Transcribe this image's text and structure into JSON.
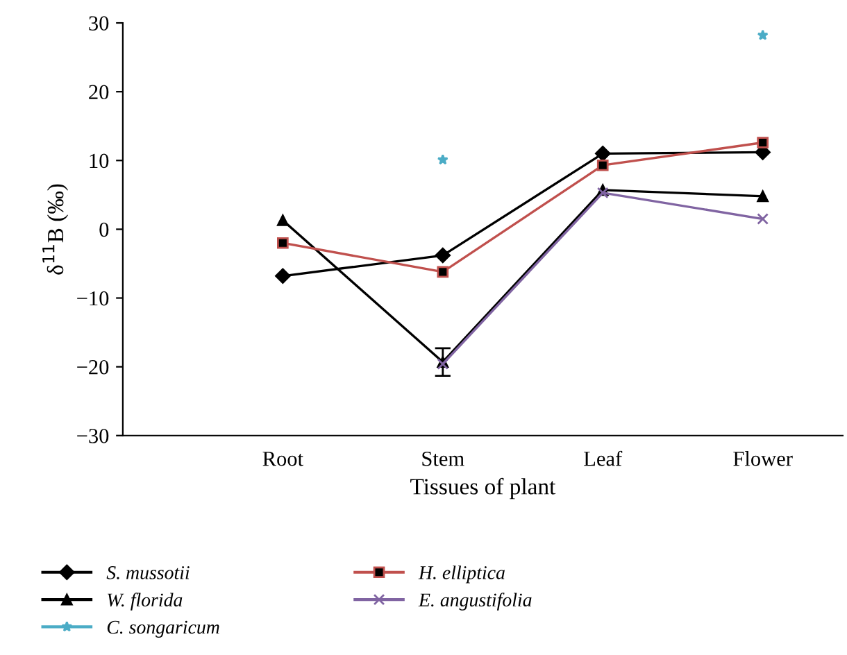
{
  "chart_data": {
    "type": "line",
    "xlabel": "Tissues of plant",
    "ylabel": "δ$^{11}$B (‰)",
    "categories": [
      null,
      "Root",
      "Stem",
      "Leaf",
      "Flower"
    ],
    "ylim": [
      -30,
      30
    ],
    "yticks": [
      {
        "value": -30,
        "label": "−30"
      },
      {
        "value": -20,
        "label": "−20"
      },
      {
        "value": -10,
        "label": "−10"
      },
      0,
      10,
      20,
      30
    ],
    "grid": false,
    "legend": "bottom",
    "series": [
      {
        "name": "S. mussotii",
        "color": "#000000",
        "marker": "diamond",
        "values": [
          null,
          -6.8,
          -3.8,
          11.0,
          11.2
        ]
      },
      {
        "name": "W. florida",
        "color": "#000000",
        "marker": "triangle",
        "values": [
          null,
          1.3,
          -19.3,
          5.7,
          4.8
        ],
        "errors": [
          null,
          null,
          2.0,
          null,
          null
        ]
      },
      {
        "name": "C. songaricum",
        "type": "scatter",
        "color": "#4bacc6",
        "marker": "star",
        "values": [
          null,
          null,
          10.1,
          null,
          28.2
        ]
      },
      {
        "name": "H. elliptica",
        "color": "#c0504d",
        "marker": "square",
        "values": [
          null,
          -2.0,
          -6.2,
          9.3,
          12.6
        ]
      },
      {
        "name": "E. angustifolia",
        "color": "#8064a2",
        "marker": "cross",
        "values": [
          null,
          null,
          -19.6,
          5.3,
          1.5
        ]
      }
    ]
  }
}
